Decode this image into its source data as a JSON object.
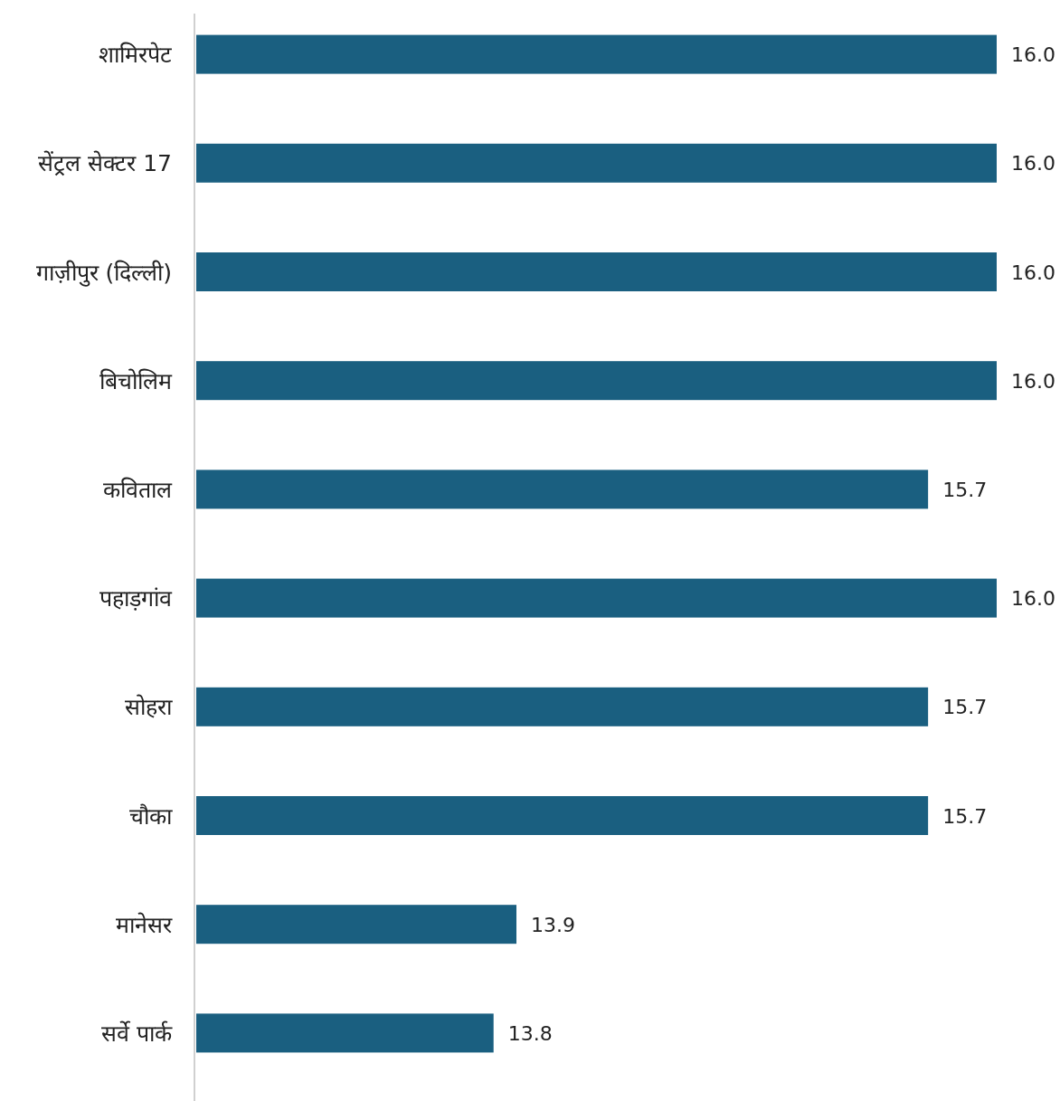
{
  "chart_data": {
    "type": "bar",
    "orientation": "horizontal",
    "categories": [
      "शामिरपेट",
      "सेंट्रल सेक्टर 17",
      "गाज़ीपुर (दिल्ली)",
      "बिचोलिम",
      "कविताल",
      "पहाड़गांव",
      "सोहरा",
      "चौका",
      "मानेसर",
      "सर्वे पार्क"
    ],
    "values": [
      16.0,
      16.0,
      16.0,
      16.0,
      15.7,
      16.0,
      15.7,
      15.7,
      13.9,
      13.8
    ],
    "color": "#1a5f80",
    "value_labels": [
      "16.0",
      "16.0",
      "16.0",
      "16.0",
      "15.7",
      "16.0",
      "15.7",
      "15.7",
      "13.9",
      "13.8"
    ],
    "xlim": [
      12.5,
      16.0
    ],
    "tick_labels": "y"
  }
}
